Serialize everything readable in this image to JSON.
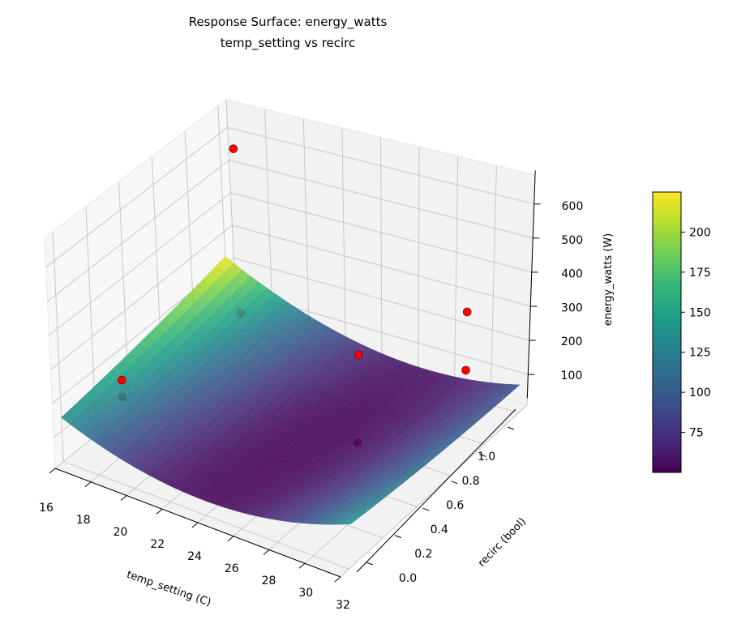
{
  "chart_data": {
    "type": "surface3d",
    "title": "Response Surface: energy_watts",
    "subtitle": "temp_setting vs recirc",
    "xlabel": "temp_setting (C)",
    "ylabel": "recirc (bool)",
    "zlabel": "energy_watts (W)",
    "xlim": [
      16,
      32
    ],
    "ylim": [
      -0.05,
      1.05
    ],
    "zlim": [
      10,
      685
    ],
    "xticks": [
      "16",
      "18",
      "20",
      "22",
      "24",
      "26",
      "28",
      "30",
      "32"
    ],
    "yticks": [
      "0.0",
      "0.2",
      "0.4",
      "0.6",
      "0.8",
      "1.0"
    ],
    "zticks": [
      "100",
      "200",
      "300",
      "400",
      "500",
      "600"
    ],
    "grid": true,
    "colormap": "viridis",
    "surface_model": {
      "form": "z = z0 + a(x-x0)^2 + b(y-y0)^2 + c(x-x0)(y-y0)",
      "z0": 50,
      "x0": 25,
      "y0": 0.35,
      "a": 1.39,
      "b": 30.2,
      "c": -8.44
    },
    "colorbar": {
      "range": [
        50,
        225
      ],
      "ticks": [
        "75",
        "100",
        "125",
        "150",
        "175",
        "200"
      ]
    },
    "scatter_color": "#ff0000",
    "points": [
      {
        "x": 16.8,
        "y": 0.99,
        "z": 570
      },
      {
        "x": 16.8,
        "y": 0.99,
        "z": 70
      },
      {
        "x": 16.8,
        "y": 0.28,
        "z": 155
      },
      {
        "x": 16.8,
        "y": 0.28,
        "z": 105
      },
      {
        "x": 27.2,
        "y": 0.56,
        "z": 300
      },
      {
        "x": 27.2,
        "y": 0.56,
        "z": 40
      },
      {
        "x": 29.6,
        "y": 0.94,
        "z": 297
      },
      {
        "x": 29.6,
        "y": 0.94,
        "z": 125
      }
    ]
  }
}
